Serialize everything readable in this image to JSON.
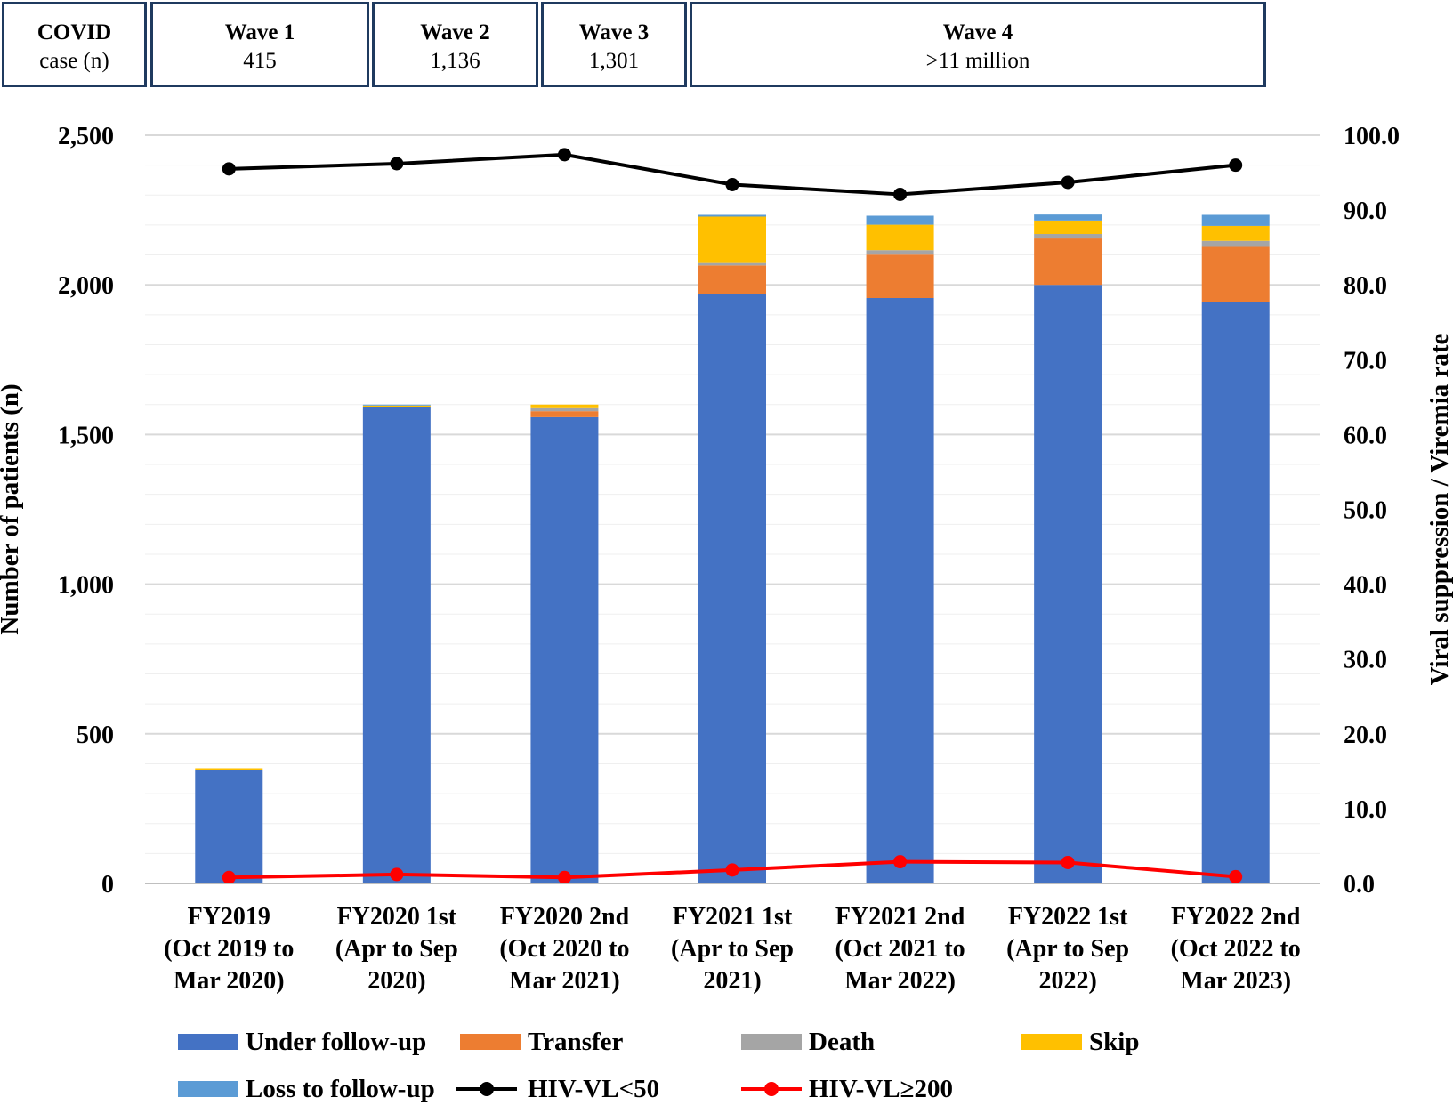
{
  "waves": {
    "header": {
      "line1": "COVID",
      "line2": "case (n)"
    },
    "items": [
      {
        "label": "Wave  1",
        "value": "415"
      },
      {
        "label": "Wave  2",
        "value": "1,136"
      },
      {
        "label": "Wave  3",
        "value": "1,301"
      },
      {
        "label": "Wave  4",
        "value": ">11  million"
      }
    ]
  },
  "chart_data": {
    "type": "bar",
    "stacked": true,
    "categories": [
      [
        "FY2019",
        "(Oct 2019 to",
        "Mar 2020)"
      ],
      [
        "FY2020 1st",
        "(Apr to Sep",
        "2020)"
      ],
      [
        "FY2020 2nd",
        "(Oct 2020 to",
        "Mar 2021)"
      ],
      [
        "FY2021 1st",
        "(Apr to Sep",
        "2021)"
      ],
      [
        "FY2021 2nd",
        "(Oct 2021 to",
        "Mar 2022)"
      ],
      [
        "FY2022 1st",
        "(Apr to Sep",
        "2022)"
      ],
      [
        "FY2022 2nd",
        "(Oct 2022 to",
        "Mar 2023)"
      ]
    ],
    "ylabel": "Number of patients (n)",
    "ylabel_right": "Viral  suppression / Viremia rate",
    "ylim": [
      0,
      2500
    ],
    "ylim_right": [
      0,
      100
    ],
    "yticks": [
      "0",
      "500",
      "1,000",
      "1,500",
      "2,000",
      "2,500"
    ],
    "yticks_right": [
      "0.0",
      "10.0",
      "20.0",
      "30.0",
      "40.0",
      "50.0",
      "60.0",
      "70.0",
      "80.0",
      "90.0",
      "100.0"
    ],
    "grid": true,
    "legend_position": "bottom",
    "series": [
      {
        "name": "Under follow-up",
        "color": "#4472c4",
        "values": [
          378,
          1591,
          1558,
          1970,
          1956,
          2000,
          1942
        ]
      },
      {
        "name": "Transfer",
        "color": "#ed7d31",
        "values": [
          0,
          0,
          20,
          95,
          145,
          155,
          185
        ]
      },
      {
        "name": "Death",
        "color": "#a5a5a5",
        "values": [
          0,
          0,
          10,
          8,
          15,
          15,
          20
        ]
      },
      {
        "name": "Skip",
        "color": "#ffc000",
        "values": [
          7,
          6,
          12,
          155,
          85,
          45,
          50
        ]
      },
      {
        "name": "Loss to follow-up",
        "color": "#5b9bd5",
        "values": [
          0,
          3,
          0,
          6,
          30,
          20,
          37
        ]
      }
    ],
    "lines": [
      {
        "name": "HIV-VL<50",
        "color": "#000000",
        "axis": "right",
        "values": [
          95.5,
          96.2,
          97.4,
          93.4,
          92.1,
          93.7,
          96.0
        ]
      },
      {
        "name": "HIV-VL≥200",
        "color": "#ff0000",
        "axis": "right",
        "values": [
          0.8,
          1.2,
          0.8,
          1.8,
          2.9,
          2.8,
          0.9
        ]
      }
    ]
  }
}
